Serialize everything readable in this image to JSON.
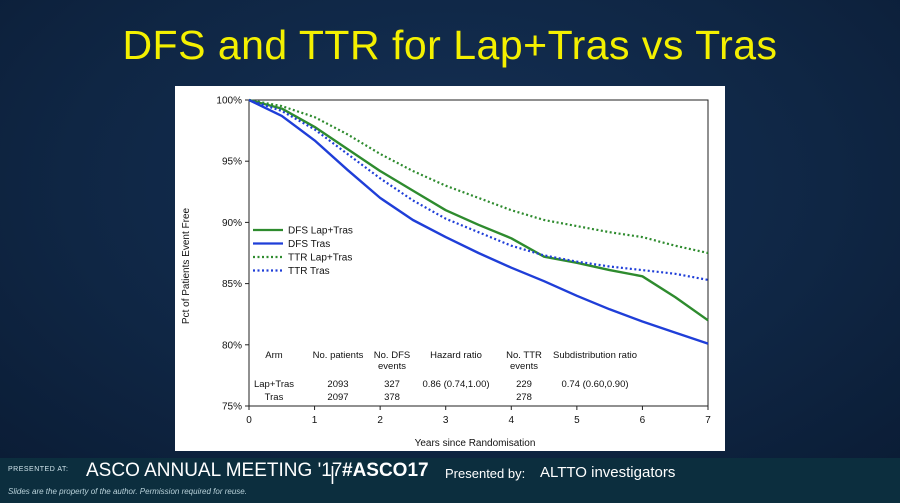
{
  "slide": {
    "title": "DFS and TTR for Lap+Tras vs Tras"
  },
  "footer": {
    "presented_at": "PRESENTED AT:",
    "meeting": "ASCO ANNUAL MEETING '17",
    "hashtag": "#ASCO17",
    "presented_by": "Presented by:",
    "presenter": "ALTTO investigators",
    "disclaimer": "Slides are the property of the author. Permission required for reuse."
  },
  "chart_data": {
    "type": "line",
    "xlabel": "Years since Randomisation",
    "ylabel": "Pct of Patients Event Free",
    "xlim": [
      0,
      7
    ],
    "ylim": [
      75,
      100
    ],
    "x_ticks": [
      "0",
      "1",
      "2",
      "3",
      "4",
      "5",
      "6",
      "7"
    ],
    "y_ticks": [
      "75%",
      "80%",
      "85%",
      "90%",
      "95%",
      "100%"
    ],
    "grid": false,
    "legend_position": "center-left",
    "series": [
      {
        "name": "DFS Lap+Tras",
        "color": "#2e8b2e",
        "style": "solid",
        "x": [
          0,
          0.5,
          1,
          1.5,
          2,
          2.5,
          3,
          3.5,
          4,
          4.5,
          5,
          5.5,
          6,
          6.5,
          7
        ],
        "y": [
          100,
          99.3,
          97.8,
          96.0,
          94.2,
          92.6,
          91.0,
          89.8,
          88.7,
          87.2,
          86.7,
          86.1,
          85.6,
          83.9,
          82.0
        ]
      },
      {
        "name": "DFS Tras",
        "color": "#1f3ed8",
        "style": "solid",
        "x": [
          0,
          0.5,
          1,
          1.5,
          2,
          2.5,
          3,
          3.5,
          4,
          4.5,
          5,
          5.5,
          6,
          6.5,
          7
        ],
        "y": [
          100,
          98.7,
          96.7,
          94.3,
          92.0,
          90.2,
          88.8,
          87.5,
          86.3,
          85.2,
          84.0,
          82.9,
          81.9,
          81.0,
          80.1
        ]
      },
      {
        "name": "TTR Lap+Tras",
        "color": "#2e8b2e",
        "style": "dotted",
        "x": [
          0,
          0.5,
          1,
          1.5,
          2,
          2.5,
          3,
          3.5,
          4,
          4.5,
          5,
          5.5,
          6,
          6.5,
          7
        ],
        "y": [
          100,
          99.5,
          98.6,
          97.2,
          95.6,
          94.2,
          93.0,
          92.0,
          91.0,
          90.2,
          89.7,
          89.2,
          88.8,
          88.1,
          87.5
        ]
      },
      {
        "name": "TTR Tras",
        "color": "#1f3ed8",
        "style": "dotted",
        "x": [
          0,
          0.5,
          1,
          1.5,
          2,
          2.5,
          3,
          3.5,
          4,
          4.5,
          5,
          5.5,
          6,
          6.5,
          7
        ],
        "y": [
          100,
          99.1,
          97.6,
          95.6,
          93.6,
          91.8,
          90.3,
          89.2,
          88.1,
          87.3,
          86.8,
          86.4,
          86.1,
          85.8,
          85.3
        ]
      }
    ],
    "table": {
      "headers": [
        "Arm",
        "No. patients",
        "No. DFS events",
        "Hazard ratio",
        "No. TTR events",
        "Subdistribution ratio"
      ],
      "rows": [
        [
          "Lap+Tras",
          "2093",
          "327",
          "0.86 (0.74,1.00)",
          "229",
          "0.74 (0.60,0.90)"
        ],
        [
          "Tras",
          "2097",
          "378",
          "",
          "278",
          ""
        ]
      ]
    }
  }
}
